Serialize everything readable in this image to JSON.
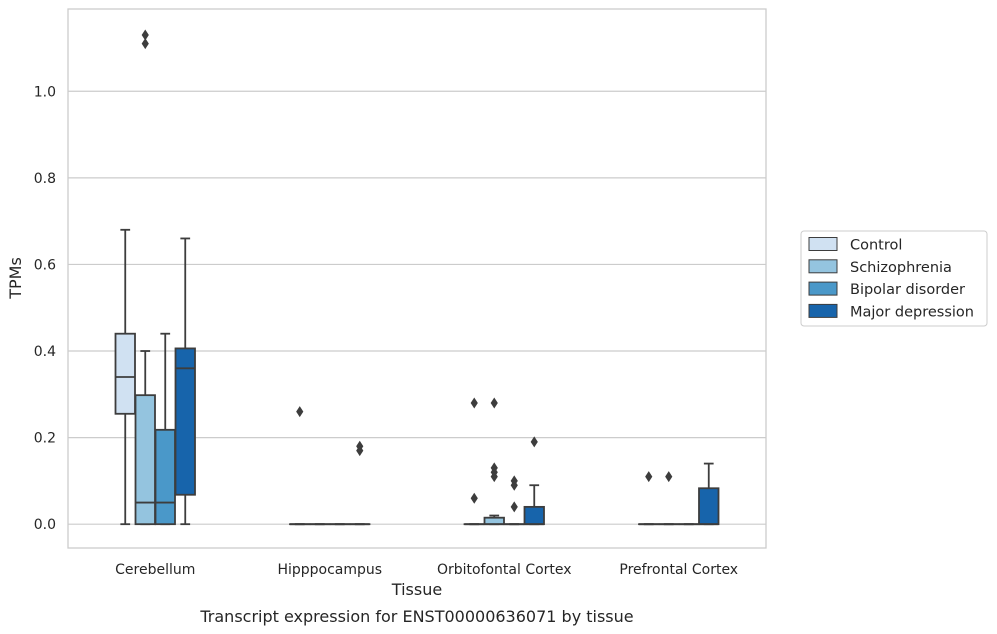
{
  "chart_data": {
    "type": "box",
    "xlabel": "Tissue",
    "ylabel": "TPMs",
    "caption": "Transcript expression for ENST00000636071 by tissue",
    "categories": [
      "Cerebellum",
      "Hipppocampus",
      "Orbitofontal Cortex",
      "Prefrontal Cortex"
    ],
    "ylim": [
      -0.055,
      1.19
    ],
    "yticks": [
      0.0,
      0.2,
      0.4,
      0.6,
      0.8,
      1.0
    ],
    "ytick_labels": [
      "0.0",
      "0.2",
      "0.4",
      "0.6",
      "0.8",
      "1.0"
    ],
    "grid": "horizontal",
    "legend_position": "right",
    "series": [
      {
        "name": "Control",
        "color": "#d0e1f2",
        "boxes": [
          {
            "whislo": 0.0,
            "q1": 0.255,
            "med": 0.34,
            "q3": 0.44,
            "whishi": 0.68,
            "fliers": []
          },
          {
            "whislo": 0.0,
            "q1": 0.0,
            "med": 0.0,
            "q3": 0.0,
            "whishi": 0.0,
            "fliers": [
              0.26
            ]
          },
          {
            "whislo": 0.0,
            "q1": 0.0,
            "med": 0.0,
            "q3": 0.0,
            "whishi": 0.0,
            "fliers": [
              0.28,
              0.06
            ]
          },
          {
            "whislo": 0.0,
            "q1": 0.0,
            "med": 0.0,
            "q3": 0.0,
            "whishi": 0.0,
            "fliers": [
              0.11
            ]
          }
        ]
      },
      {
        "name": "Schizophrenia",
        "color": "#94c4df",
        "boxes": [
          {
            "whislo": 0.0,
            "q1": 0.0,
            "med": 0.05,
            "q3": 0.298,
            "whishi": 0.4,
            "fliers": [
              1.13,
              1.11
            ]
          },
          {
            "whislo": 0.0,
            "q1": 0.0,
            "med": 0.0,
            "q3": 0.0,
            "whishi": 0.0,
            "fliers": []
          },
          {
            "whislo": 0.0,
            "q1": 0.0,
            "med": 0.0,
            "q3": 0.015,
            "whishi": 0.02,
            "fliers": [
              0.28,
              0.13,
              0.12,
              0.11
            ]
          },
          {
            "whislo": 0.0,
            "q1": 0.0,
            "med": 0.0,
            "q3": 0.0,
            "whishi": 0.0,
            "fliers": [
              0.11
            ]
          }
        ]
      },
      {
        "name": "Bipolar disorder",
        "color": "#4a98c9",
        "boxes": [
          {
            "whislo": 0.0,
            "q1": 0.0,
            "med": 0.05,
            "q3": 0.218,
            "whishi": 0.44,
            "fliers": []
          },
          {
            "whislo": 0.0,
            "q1": 0.0,
            "med": 0.0,
            "q3": 0.0,
            "whishi": 0.0,
            "fliers": []
          },
          {
            "whislo": 0.0,
            "q1": 0.0,
            "med": 0.0,
            "q3": 0.0,
            "whishi": 0.0,
            "fliers": [
              0.1,
              0.09,
              0.04
            ]
          },
          {
            "whislo": 0.0,
            "q1": 0.0,
            "med": 0.0,
            "q3": 0.0,
            "whishi": 0.0,
            "fliers": []
          }
        ]
      },
      {
        "name": "Major depression",
        "color": "#1764ab",
        "boxes": [
          {
            "whislo": 0.0,
            "q1": 0.068,
            "med": 0.36,
            "q3": 0.406,
            "whishi": 0.66,
            "fliers": []
          },
          {
            "whislo": 0.0,
            "q1": 0.0,
            "med": 0.0,
            "q3": 0.0,
            "whishi": 0.0,
            "fliers": [
              0.18,
              0.17
            ]
          },
          {
            "whislo": 0.0,
            "q1": 0.0,
            "med": 0.0,
            "q3": 0.04,
            "whishi": 0.09,
            "fliers": [
              0.19
            ]
          },
          {
            "whislo": 0.0,
            "q1": 0.0,
            "med": 0.0,
            "q3": 0.083,
            "whishi": 0.14,
            "fliers": []
          }
        ]
      }
    ]
  }
}
